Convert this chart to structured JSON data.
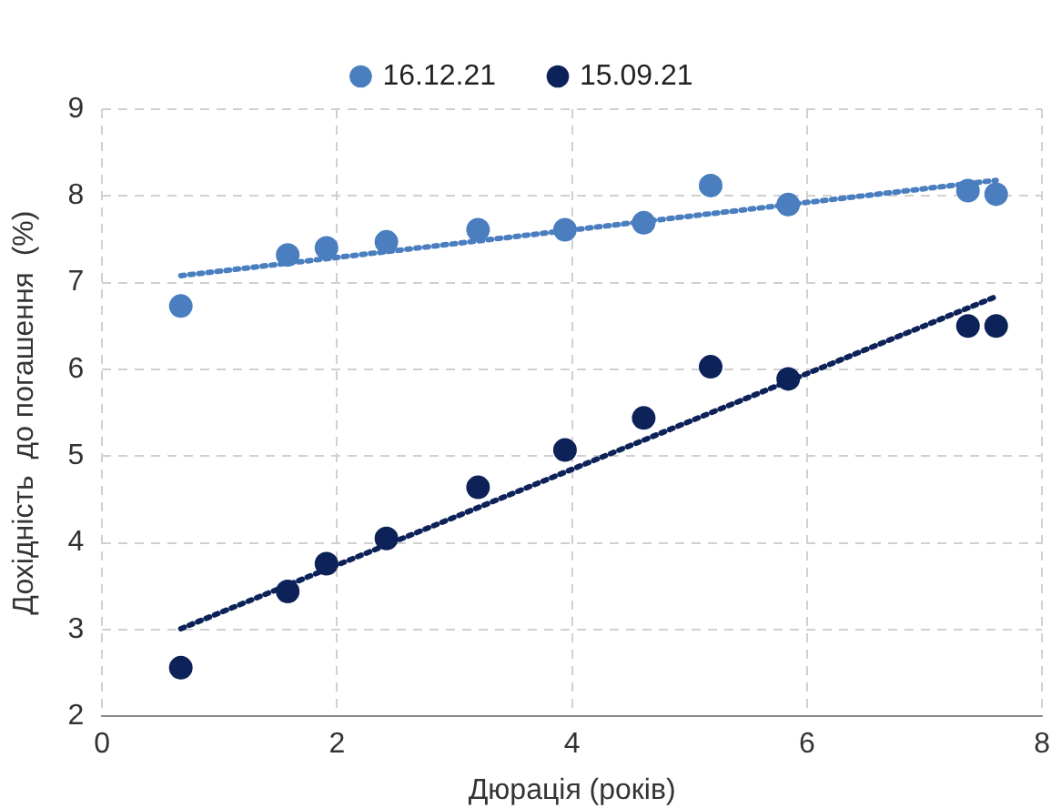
{
  "chart_data": {
    "type": "scatter",
    "xlabel": "Дюрація (років)",
    "ylabel": "Дохідність  до погашення  (%)",
    "xlim": [
      0,
      8
    ],
    "xticks": [
      0,
      2,
      4,
      6,
      8
    ],
    "ylim": [
      2,
      9
    ],
    "yticks": [
      2,
      3,
      4,
      5,
      6,
      7,
      8,
      9
    ],
    "grid": true,
    "legend": "top",
    "marker": "circle",
    "series": [
      {
        "name": "16.12.21",
        "type": "scatter",
        "color": "#4a7ebf",
        "x": [
          0.67,
          1.58,
          1.91,
          2.42,
          3.2,
          3.94,
          4.61,
          5.18,
          5.84,
          7.37,
          7.61
        ],
        "values": [
          6.73,
          7.32,
          7.4,
          7.47,
          7.61,
          7.61,
          7.69,
          8.12,
          7.9,
          8.06,
          8.02
        ]
      },
      {
        "name": "15.09.21",
        "type": "scatter",
        "color": "#0d2258",
        "x": [
          0.67,
          1.58,
          1.91,
          2.42,
          3.2,
          3.94,
          4.61,
          5.18,
          5.84,
          7.37,
          7.61
        ],
        "values": [
          2.56,
          3.44,
          3.76,
          4.05,
          4.64,
          5.07,
          5.44,
          6.03,
          5.89,
          6.5,
          6.5
        ]
      },
      {
        "type": "line",
        "color": "#4a7ebf",
        "line_style": "dotted",
        "marker": "none",
        "x": [
          0.67,
          7.61
        ],
        "values": [
          7.08,
          8.18
        ]
      },
      {
        "type": "line",
        "color": "#0d2258",
        "line_style": "dotted",
        "marker": "none",
        "x": [
          0.67,
          7.61
        ],
        "values": [
          3.01,
          6.84
        ]
      }
    ]
  }
}
